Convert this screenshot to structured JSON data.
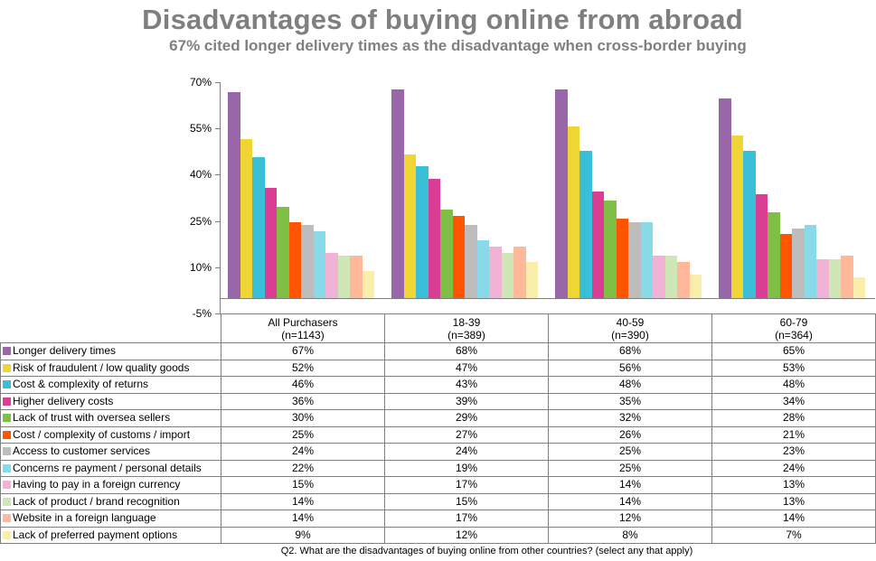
{
  "header": {
    "title": "Disadvantages of buying online from abroad",
    "subtitle": "67% cited longer delivery times as the disadvantage when cross-border buying"
  },
  "axis": {
    "ticks": [
      "70%",
      "55%",
      "40%",
      "25%",
      "10%",
      "-5%"
    ]
  },
  "table": {
    "columns": [
      {
        "name": "All Purchasers",
        "n": "(n=1143)"
      },
      {
        "name": "18-39",
        "n": "(n=389)"
      },
      {
        "name": "40-59",
        "n": "(n=390)"
      },
      {
        "name": "60-79",
        "n": "(n=364)"
      }
    ],
    "rows": [
      {
        "label": "Longer delivery times",
        "color": "#9966aa",
        "values": [
          "67%",
          "68%",
          "68%",
          "65%"
        ]
      },
      {
        "label": "Risk of fraudulent / low quality goods",
        "color": "#f0d635",
        "values": [
          "52%",
          "47%",
          "56%",
          "53%"
        ]
      },
      {
        "label": "Cost & complexity of returns",
        "color": "#39c0d8",
        "values": [
          "46%",
          "43%",
          "48%",
          "48%"
        ]
      },
      {
        "label": "Higher delivery costs",
        "color": "#d93d94",
        "values": [
          "36%",
          "39%",
          "35%",
          "34%"
        ]
      },
      {
        "label": "Lack of trust with oversea sellers",
        "color": "#80bf45",
        "values": [
          "30%",
          "29%",
          "32%",
          "28%"
        ]
      },
      {
        "label": "Cost / complexity of customs / import",
        "color": "#ff5500",
        "values": [
          "25%",
          "27%",
          "26%",
          "21%"
        ]
      },
      {
        "label": "Access to customer services",
        "color": "#bdbdbd",
        "values": [
          "24%",
          "24%",
          "25%",
          "23%"
        ]
      },
      {
        "label": "Concerns re  payment / personal details",
        "color": "#88dae8",
        "values": [
          "22%",
          "19%",
          "25%",
          "24%"
        ]
      },
      {
        "label": "Having to pay in a foreign currency",
        "color": "#f0b3d6",
        "values": [
          "15%",
          "17%",
          "14%",
          "13%"
        ]
      },
      {
        "label": "Lack of product / brand recognition",
        "color": "#cfe6b7",
        "values": [
          "14%",
          "15%",
          "14%",
          "13%"
        ]
      },
      {
        "label": "Website in a foreign language",
        "color": "#ffb899",
        "values": [
          "14%",
          "17%",
          "12%",
          "14%"
        ]
      },
      {
        "label": "Lack of preferred payment options",
        "color": "#f9eeaa",
        "values": [
          "9%",
          "12%",
          "8%",
          "7%"
        ]
      }
    ]
  },
  "footnote": "Q2. What are the disadvantages of buying online from other countries? (select any that apply)",
  "chart_data": {
    "type": "bar",
    "title": "Disadvantages of buying online from abroad",
    "subtitle": "67% cited longer delivery times as the disadvantage when cross-border buying",
    "xlabel": "",
    "ylabel": "",
    "ylim": [
      -5,
      70
    ],
    "yticks": [
      70,
      55,
      40,
      25,
      10,
      -5
    ],
    "grid": false,
    "legend_position": "data table (left column)",
    "categories": [
      "All Purchasers (n=1143)",
      "18-39 (n=389)",
      "40-59 (n=390)",
      "60-79 (n=364)"
    ],
    "series": [
      {
        "name": "Longer delivery times",
        "color": "#9966aa",
        "values": [
          67,
          68,
          68,
          65
        ]
      },
      {
        "name": "Risk of fraudulent / low quality goods",
        "color": "#f0d635",
        "values": [
          52,
          47,
          56,
          53
        ]
      },
      {
        "name": "Cost & complexity of returns",
        "color": "#39c0d8",
        "values": [
          46,
          43,
          48,
          48
        ]
      },
      {
        "name": "Higher delivery costs",
        "color": "#d93d94",
        "values": [
          36,
          39,
          35,
          34
        ]
      },
      {
        "name": "Lack of trust with oversea sellers",
        "color": "#80bf45",
        "values": [
          30,
          29,
          32,
          28
        ]
      },
      {
        "name": "Cost / complexity of customs / import",
        "color": "#ff5500",
        "values": [
          25,
          27,
          26,
          21
        ]
      },
      {
        "name": "Access to customer services",
        "color": "#bdbdbd",
        "values": [
          24,
          24,
          25,
          23
        ]
      },
      {
        "name": "Concerns re  payment / personal details",
        "color": "#88dae8",
        "values": [
          22,
          19,
          25,
          24
        ]
      },
      {
        "name": "Having to pay in a foreign currency",
        "color": "#f0b3d6",
        "values": [
          15,
          17,
          14,
          13
        ]
      },
      {
        "name": "Lack of product / brand recognition",
        "color": "#cfe6b7",
        "values": [
          14,
          15,
          14,
          13
        ]
      },
      {
        "name": "Website in a foreign language",
        "color": "#ffb899",
        "values": [
          14,
          17,
          12,
          14
        ]
      },
      {
        "name": "Lack of preferred payment options",
        "color": "#f9eeaa",
        "values": [
          9,
          12,
          8,
          7
        ]
      }
    ],
    "footnote": "Q2. What are the disadvantages of buying online from other countries? (select any that apply)"
  }
}
